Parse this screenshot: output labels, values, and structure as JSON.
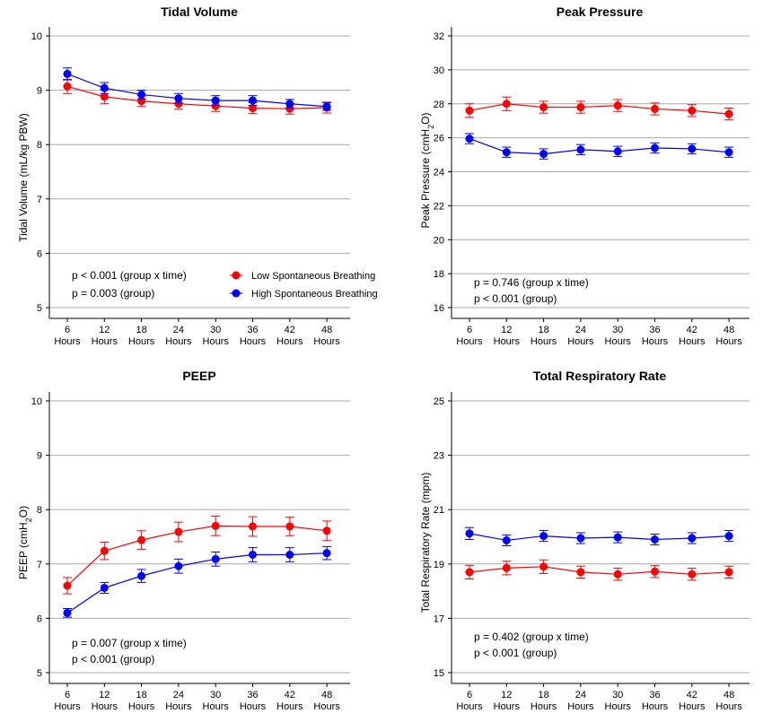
{
  "chart_data": [
    {
      "type": "line",
      "title": "Tidal Volume",
      "ylabel": "Tidal Volume (mL/kg PBW)",
      "ylim": [
        5,
        10
      ],
      "yticks": [
        5,
        6,
        7,
        8,
        9,
        10
      ],
      "categories": [
        "6 Hours",
        "12 Hours",
        "18 Hours",
        "24 Hours",
        "30 Hours",
        "36 Hours",
        "42 Hours",
        "48 Hours"
      ],
      "series": [
        {
          "name": "Low Spontaneous Breathing",
          "color": "#ff0000",
          "values": [
            9.07,
            8.88,
            8.8,
            8.75,
            8.71,
            8.67,
            8.66,
            8.68
          ],
          "err": [
            0.13,
            0.13,
            0.1,
            0.1,
            0.1,
            0.1,
            0.1,
            0.1
          ]
        },
        {
          "name": "High Spontaneous Breathing",
          "color": "#0000ff",
          "values": [
            9.3,
            9.04,
            8.92,
            8.85,
            8.81,
            8.81,
            8.75,
            8.7
          ],
          "err": [
            0.11,
            0.1,
            0.08,
            0.09,
            0.09,
            0.09,
            0.08,
            0.07
          ]
        }
      ],
      "annotations": [
        "p < 0.001 (group x time)",
        "p = 0.003 (group)"
      ],
      "legend": {
        "placement": "bottom-right"
      }
    },
    {
      "type": "line",
      "title": "Peak Pressure",
      "ylabel": "Peak Pressure (cmH2O)",
      "ylim": [
        16,
        32
      ],
      "yticks": [
        16,
        18,
        20,
        22,
        24,
        26,
        28,
        30,
        32
      ],
      "categories": [
        "6 Hours",
        "12 Hours",
        "18 Hours",
        "24 Hours",
        "30 Hours",
        "36 Hours",
        "42 Hours",
        "48 Hours"
      ],
      "series": [
        {
          "color": "#ff0000",
          "values": [
            27.6,
            28.0,
            27.8,
            27.8,
            27.9,
            27.7,
            27.6,
            27.4
          ],
          "err": [
            0.4,
            0.4,
            0.35,
            0.35,
            0.35,
            0.35,
            0.35,
            0.35
          ]
        },
        {
          "color": "#0000ff",
          "values": [
            25.95,
            25.15,
            25.05,
            25.3,
            25.2,
            25.4,
            25.35,
            25.15
          ],
          "err": [
            0.3,
            0.3,
            0.3,
            0.3,
            0.3,
            0.3,
            0.3,
            0.3
          ]
        }
      ],
      "annotations": [
        "p = 0.746 (group x time)",
        "p < 0.001 (group)"
      ]
    },
    {
      "type": "line",
      "title": "PEEP",
      "ylabel": "PEEP (cmH2O)",
      "ylim": [
        5,
        10
      ],
      "yticks": [
        5,
        6,
        7,
        8,
        9,
        10
      ],
      "categories": [
        "6 Hours",
        "12 Hours",
        "18 Hours",
        "24 Hours",
        "30 Hours",
        "36 Hours",
        "42 Hours",
        "48 Hours"
      ],
      "series": [
        {
          "color": "#ff0000",
          "values": [
            6.6,
            7.24,
            7.44,
            7.59,
            7.7,
            7.69,
            7.69,
            7.61
          ],
          "err": [
            0.15,
            0.16,
            0.17,
            0.18,
            0.18,
            0.18,
            0.17,
            0.18
          ]
        },
        {
          "color": "#0000ff",
          "values": [
            6.1,
            6.56,
            6.78,
            6.96,
            7.09,
            7.17,
            7.17,
            7.2
          ],
          "err": [
            0.08,
            0.1,
            0.12,
            0.13,
            0.13,
            0.13,
            0.13,
            0.12
          ]
        }
      ],
      "annotations": [
        "p = 0.007 (group x time)",
        "p < 0.001 (group)"
      ]
    },
    {
      "type": "line",
      "title": "Total Respiratory Rate",
      "ylabel": "Total Respiratory Rate (mpm)",
      "ylim": [
        15,
        25
      ],
      "yticks": [
        15,
        17,
        19,
        21,
        23,
        25
      ],
      "categories": [
        "6 Hours",
        "12 Hours",
        "18 Hours",
        "24 Hours",
        "30 Hours",
        "36 Hours",
        "42 Hours",
        "48 Hours"
      ],
      "series": [
        {
          "color": "#ff0000",
          "values": [
            18.7,
            18.85,
            18.9,
            18.7,
            18.62,
            18.72,
            18.62,
            18.7
          ],
          "err": [
            0.25,
            0.25,
            0.25,
            0.22,
            0.22,
            0.22,
            0.22,
            0.22
          ]
        },
        {
          "color": "#0000ff",
          "values": [
            20.12,
            19.87,
            20.03,
            19.95,
            19.98,
            19.9,
            19.95,
            20.03
          ],
          "err": [
            0.22,
            0.2,
            0.2,
            0.2,
            0.2,
            0.2,
            0.2,
            0.2
          ]
        }
      ],
      "annotations": [
        "p = 0.402 (group x time)",
        "p < 0.001 (group)"
      ]
    }
  ]
}
